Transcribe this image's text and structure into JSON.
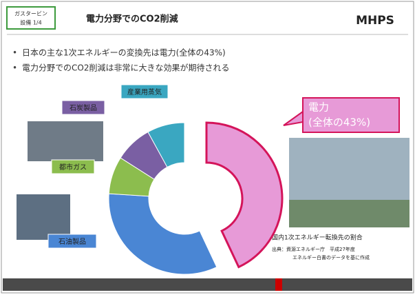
{
  "header": {
    "tag_line1": "ガスタービン",
    "tag_line2": "設備 1/4",
    "title": "電力分野でのCO2削減",
    "logo": "MHPS"
  },
  "bullets": [
    "日本の主な1次エネルギーの変換先は電力(全体の43%)",
    "電力分野でのCO2削減は非常に大きな効果が期待される"
  ],
  "caption": {
    "title": "国内1次エネルギー転換先の割合",
    "source_line1": "出典：資源エネルギー庁　平成27年度",
    "source_line2": "エネルギー白書のデータを基に作成"
  },
  "chart_data": {
    "type": "pie",
    "donut": true,
    "categories": [
      "電力",
      "石油製品",
      "都市ガス",
      "石炭製品",
      "産業用蒸気"
    ],
    "values": [
      43,
      33,
      8,
      8,
      8
    ],
    "value_labels": [
      "(全体の43%)",
      null,
      null,
      null,
      null
    ],
    "colors": [
      "#e79ad7",
      "#4a86d4",
      "#8cbd4e",
      "#7a5fa3",
      "#3aa7c1"
    ]
  }
}
